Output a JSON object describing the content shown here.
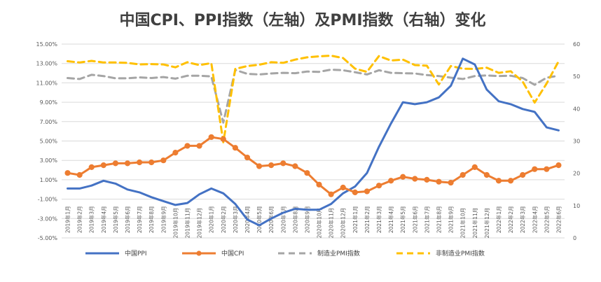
{
  "chart_data": {
    "type": "line",
    "title": "中国CPI、PPI指数（左轴）及PMI指数（右轴）变化",
    "left_axis": {
      "ticks": [
        "15.00%",
        "13.00%",
        "11.00%",
        "9.00%",
        "7.00%",
        "5.00%",
        "3.00%",
        "1.00%",
        "-1.00%",
        "-3.00%",
        "-5.00%"
      ],
      "ylim": [
        -5,
        15
      ],
      "unit": "%"
    },
    "right_axis": {
      "ticks": [
        "60",
        "50",
        "40",
        "30",
        "20",
        "10",
        "0"
      ],
      "ylim": [
        0,
        60
      ]
    },
    "grid": true,
    "legend_position": "bottom",
    "categories": [
      "2019年1月",
      "2019年2月",
      "2019年3月",
      "2019年4月",
      "2019年5月",
      "2019年6月",
      "2019年7月",
      "2019年8月",
      "2019年9月",
      "2019年10月",
      "2019年11月",
      "2019年12月",
      "2020年1月",
      "2020年2月",
      "2020年3月",
      "2020年4月",
      "2020年5月",
      "2020年6月",
      "2020年7月",
      "2020年8月",
      "2020年9月",
      "2020年10月",
      "2020年11月",
      "2020年12月",
      "2021年1月",
      "2021年2月",
      "2021年3月",
      "2021年4月",
      "2021年5月",
      "2021年6月",
      "2021年7月",
      "2021年8月",
      "2021年9月",
      "2021年10月",
      "2021年11月",
      "2021年12月",
      "2022年1月",
      "2022年2月",
      "2022年3月",
      "2022年4月",
      "2022年5月",
      "2022年6月"
    ],
    "series": [
      {
        "name": "中国PPI",
        "axis": "left",
        "color": "#4472C4",
        "style": "solid",
        "values": [
          0.1,
          0.1,
          0.4,
          0.9,
          0.6,
          0.0,
          -0.3,
          -0.8,
          -1.2,
          -1.6,
          -1.4,
          -0.5,
          0.1,
          -0.4,
          -1.5,
          -3.1,
          -3.7,
          -3.0,
          -2.4,
          -2.0,
          -2.1,
          -2.1,
          -1.5,
          -0.4,
          0.3,
          1.7,
          4.4,
          6.8,
          9.0,
          8.8,
          9.0,
          9.5,
          10.7,
          13.5,
          12.9,
          10.3,
          9.1,
          8.8,
          8.3,
          8.0,
          6.4,
          6.1
        ]
      },
      {
        "name": "中国CPI",
        "axis": "left",
        "color": "#ED7D31",
        "style": "solid",
        "values": [
          1.7,
          1.5,
          2.3,
          2.5,
          2.7,
          2.7,
          2.8,
          2.8,
          3.0,
          3.8,
          4.5,
          4.5,
          5.4,
          5.2,
          4.3,
          3.3,
          2.4,
          2.5,
          2.7,
          2.4,
          1.7,
          0.5,
          -0.5,
          0.2,
          -0.3,
          -0.2,
          0.4,
          0.9,
          1.3,
          1.1,
          1.0,
          0.8,
          0.7,
          1.5,
          2.3,
          1.5,
          0.9,
          0.9,
          1.5,
          2.1,
          2.1,
          2.5
        ]
      },
      {
        "name": "制造业PMI指数",
        "axis": "right",
        "color": "#A5A5A5",
        "style": "dashed",
        "values": [
          49.5,
          49.2,
          50.5,
          50.1,
          49.4,
          49.4,
          49.7,
          49.5,
          49.8,
          49.3,
          50.2,
          50.2,
          50.0,
          35.7,
          52.0,
          50.8,
          50.6,
          50.9,
          51.1,
          51.0,
          51.5,
          51.4,
          52.1,
          51.9,
          51.3,
          50.6,
          51.9,
          51.1,
          51.0,
          50.9,
          50.4,
          50.1,
          49.6,
          49.2,
          50.1,
          50.3,
          50.1,
          50.2,
          49.5,
          47.4,
          49.6,
          50.2
        ]
      },
      {
        "name": "非制造业PMI指数",
        "axis": "right",
        "color": "#FFC000",
        "style": "dashed",
        "values": [
          54.7,
          54.3,
          54.8,
          54.3,
          54.3,
          54.2,
          53.7,
          53.8,
          53.7,
          52.8,
          54.4,
          53.5,
          54.1,
          29.6,
          52.3,
          53.2,
          53.6,
          54.4,
          54.2,
          55.2,
          55.9,
          56.2,
          56.4,
          55.7,
          52.4,
          51.4,
          56.3,
          54.9,
          55.2,
          53.5,
          53.3,
          47.5,
          53.2,
          52.4,
          52.3,
          52.7,
          51.1,
          51.6,
          48.4,
          41.9,
          47.8,
          54.7
        ]
      }
    ]
  }
}
